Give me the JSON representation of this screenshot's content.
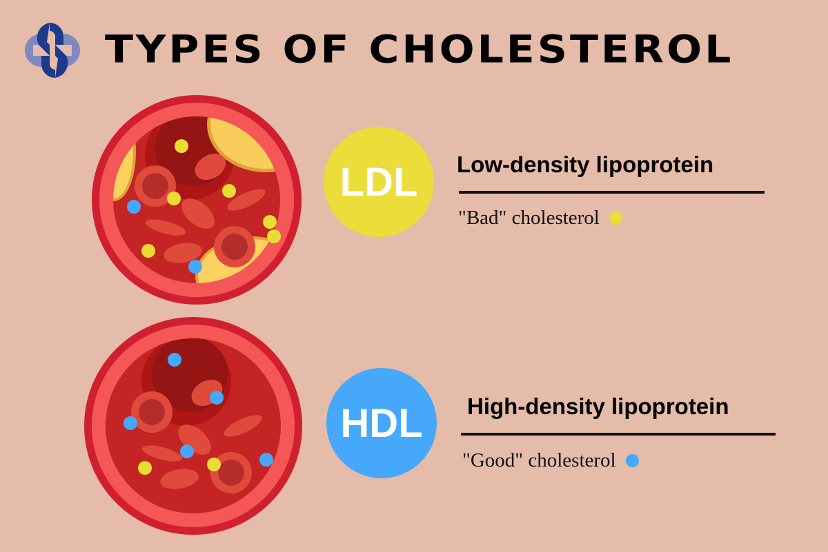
{
  "title": "TYPES OF CHOLESTEROL",
  "logo": {
    "icon": "medical-cross-swirl-logo",
    "colors": [
      "#1e3a8c",
      "#8088c0"
    ]
  },
  "colors": {
    "background": "#e5bba9",
    "ldl": "#ebdd3a",
    "hdl": "#45a8fb",
    "vessel_outer": "#d0202f",
    "vessel_wall": "#f55757",
    "blood": "#c42424",
    "plaque": "#fbd15f"
  },
  "ldl": {
    "badge": "LDL",
    "heading": "Low-density lipoprotein",
    "description": "\"Bad\" cholesterol",
    "icon": "blood-vessel-with-plaque"
  },
  "hdl": {
    "badge": "HDL",
    "heading": "High-density lipoprotein",
    "description": "\"Good\" cholesterol",
    "icon": "blood-vessel-clear"
  }
}
